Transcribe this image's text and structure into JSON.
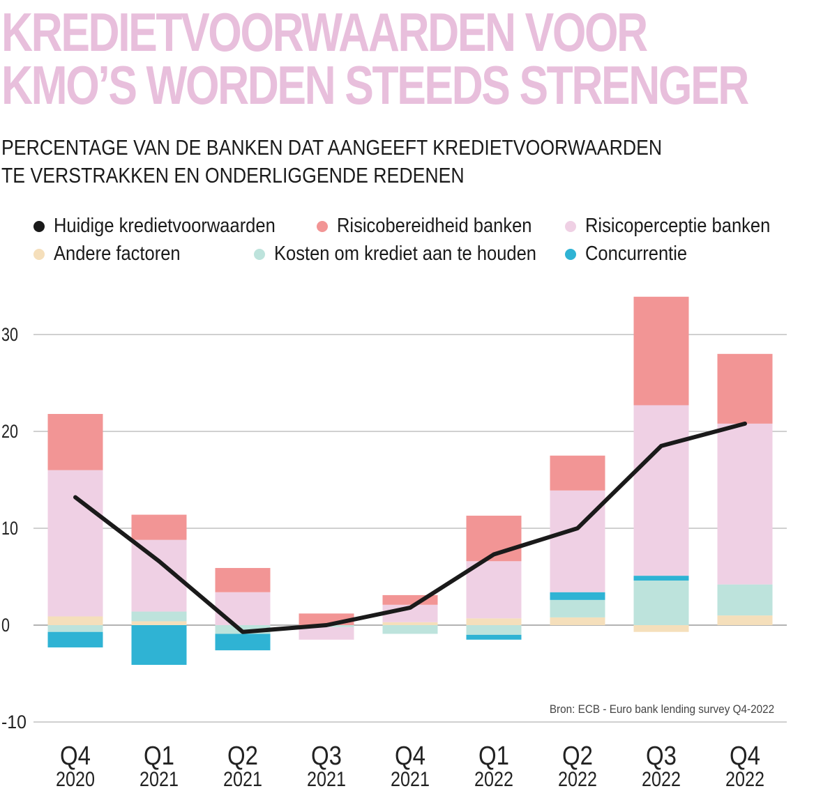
{
  "title": {
    "line1": "KREDIETVOORWAARDEN VOOR",
    "line2": "KMO’S WORDEN STEEDS STRENGER"
  },
  "subtitle": {
    "line1": "PERCENTAGE VAN DE BANKEN DAT AANGEEFT KREDIETVOORWAARDEN",
    "line2": "TE VERSTRAKKEN EN ONDERLIGGENDE REDENEN"
  },
  "legend": [
    {
      "label": "Huidige kredietvoorwaarden",
      "color": "#1a1a1a"
    },
    {
      "label": "Risicobereidheid banken",
      "color": "#f29595"
    },
    {
      "label": "Risicoperceptie banken",
      "color": "#efd0e4"
    },
    {
      "label": "Andere factoren",
      "color": "#f5dfbb"
    },
    {
      "label": "Kosten om krediet aan te houden",
      "color": "#bde3dc"
    },
    {
      "label": "Concurrentie",
      "color": "#2fb3d4"
    }
  ],
  "source": "Bron: ECB - Euro bank lending survey Q4-2022",
  "chart_data": {
    "type": "bar",
    "stacked": true,
    "categories": [
      {
        "quarter": "Q4",
        "year": "2020"
      },
      {
        "quarter": "Q1",
        "year": "2021"
      },
      {
        "quarter": "Q2",
        "year": "2021"
      },
      {
        "quarter": "Q3",
        "year": "2021"
      },
      {
        "quarter": "Q4",
        "year": "2021"
      },
      {
        "quarter": "Q1",
        "year": "2022"
      },
      {
        "quarter": "Q2",
        "year": "2022"
      },
      {
        "quarter": "Q3",
        "year": "2022"
      },
      {
        "quarter": "Q4",
        "year": "2022"
      }
    ],
    "series": [
      {
        "name": "Andere factoren",
        "color": "#f5dfbb",
        "values": [
          0.9,
          0.4,
          0.0,
          0.0,
          0.3,
          0.7,
          0.8,
          -0.7,
          1.0
        ]
      },
      {
        "name": "Kosten om krediet aan te houden",
        "color": "#bde3dc",
        "values": [
          -0.7,
          1.0,
          -0.9,
          -0.2,
          -0.9,
          -1.0,
          1.8,
          4.6,
          3.2
        ]
      },
      {
        "name": "Concurrentie",
        "color": "#2fb3d4",
        "values": [
          -1.6,
          -4.1,
          -1.7,
          0.0,
          0.0,
          -0.5,
          0.8,
          0.5,
          0.0
        ]
      },
      {
        "name": "Risicoperceptie banken",
        "color": "#efd0e4",
        "values": [
          15.1,
          7.4,
          3.4,
          -1.3,
          1.8,
          5.9,
          10.5,
          17.6,
          16.6
        ]
      },
      {
        "name": "Risicobereidheid banken",
        "color": "#f29595",
        "values": [
          5.8,
          2.6,
          2.5,
          1.2,
          1.0,
          4.7,
          3.6,
          11.2,
          7.2
        ]
      }
    ],
    "line": {
      "name": "Huidige kredietvoorwaarden",
      "color": "#1a1a1a",
      "values": [
        13.2,
        6.6,
        -0.7,
        0.0,
        1.8,
        7.3,
        10.0,
        18.5,
        20.8
      ]
    },
    "yticks": [
      -10,
      0,
      10,
      20,
      30
    ],
    "ylim": [
      -10,
      34
    ],
    "grid": true,
    "legend_position": "top"
  }
}
